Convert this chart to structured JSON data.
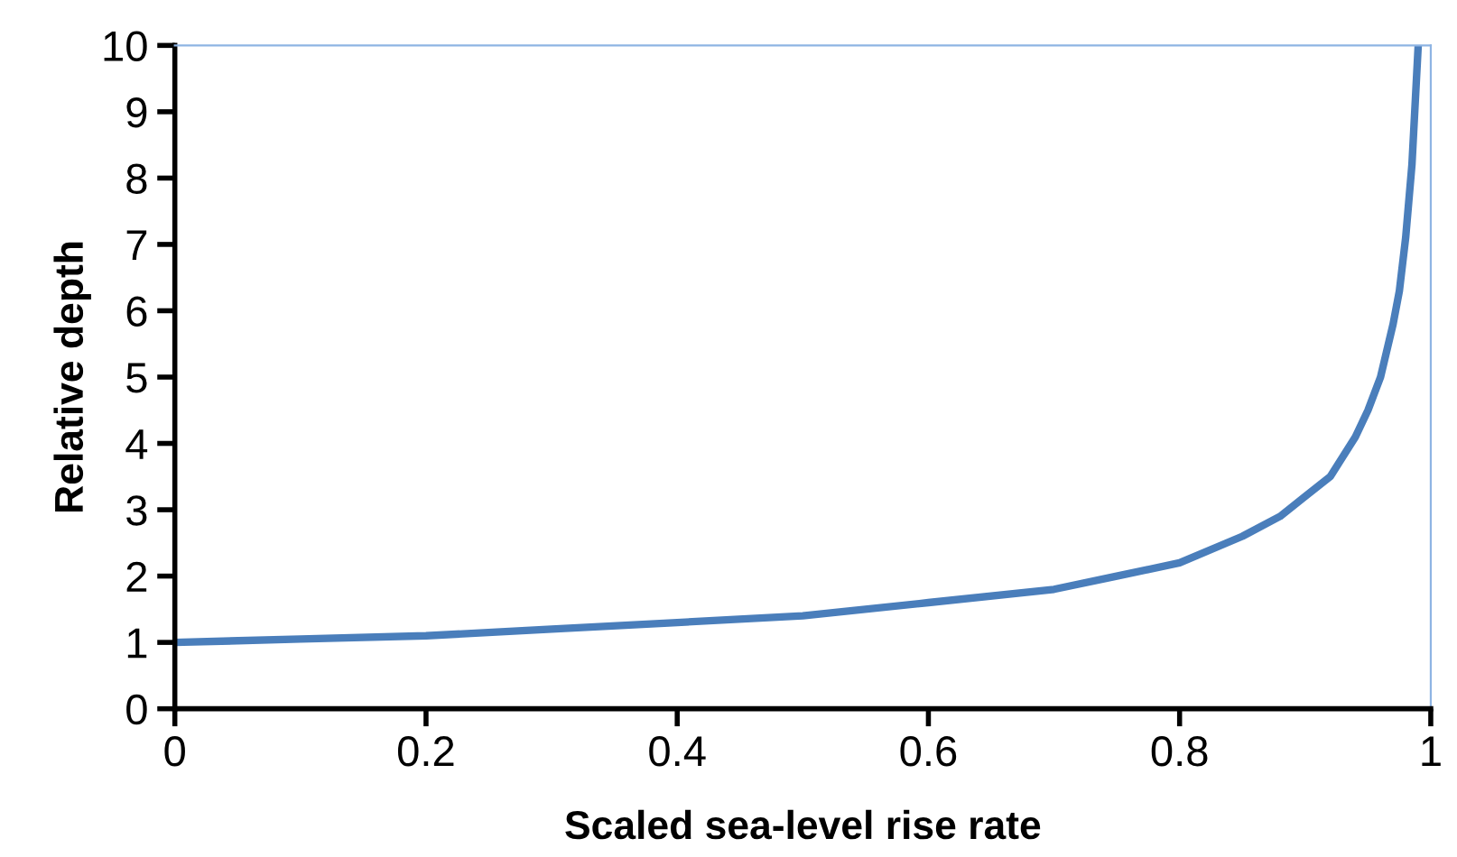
{
  "chart_data": {
    "type": "line",
    "xlabel": "Scaled sea-level rise rate",
    "ylabel": "Relative depth",
    "x": [
      0,
      0.1,
      0.2,
      0.3,
      0.4,
      0.5,
      0.6,
      0.7,
      0.75,
      0.8,
      0.85,
      0.88,
      0.9,
      0.92,
      0.94,
      0.95,
      0.96,
      0.97,
      0.975,
      0.98,
      0.985,
      0.99
    ],
    "series": [
      {
        "color": "#4a7ebb",
        "values": [
          1.0,
          1.05,
          1.1,
          1.2,
          1.3,
          1.4,
          1.6,
          1.8,
          2.0,
          2.2,
          2.6,
          2.9,
          3.2,
          3.5,
          4.1,
          4.5,
          5.0,
          5.8,
          6.3,
          7.1,
          8.2,
          10.0
        ]
      }
    ],
    "xlim": [
      0,
      1
    ],
    "ylim": [
      0,
      10
    ],
    "xticks": [
      0,
      0.2,
      0.4,
      0.6,
      0.8,
      1
    ],
    "yticks": [
      0,
      1,
      2,
      3,
      4,
      5,
      6,
      7,
      8,
      9,
      10
    ],
    "grid": false,
    "legend": false,
    "marker": "none",
    "line_style": "solid"
  }
}
